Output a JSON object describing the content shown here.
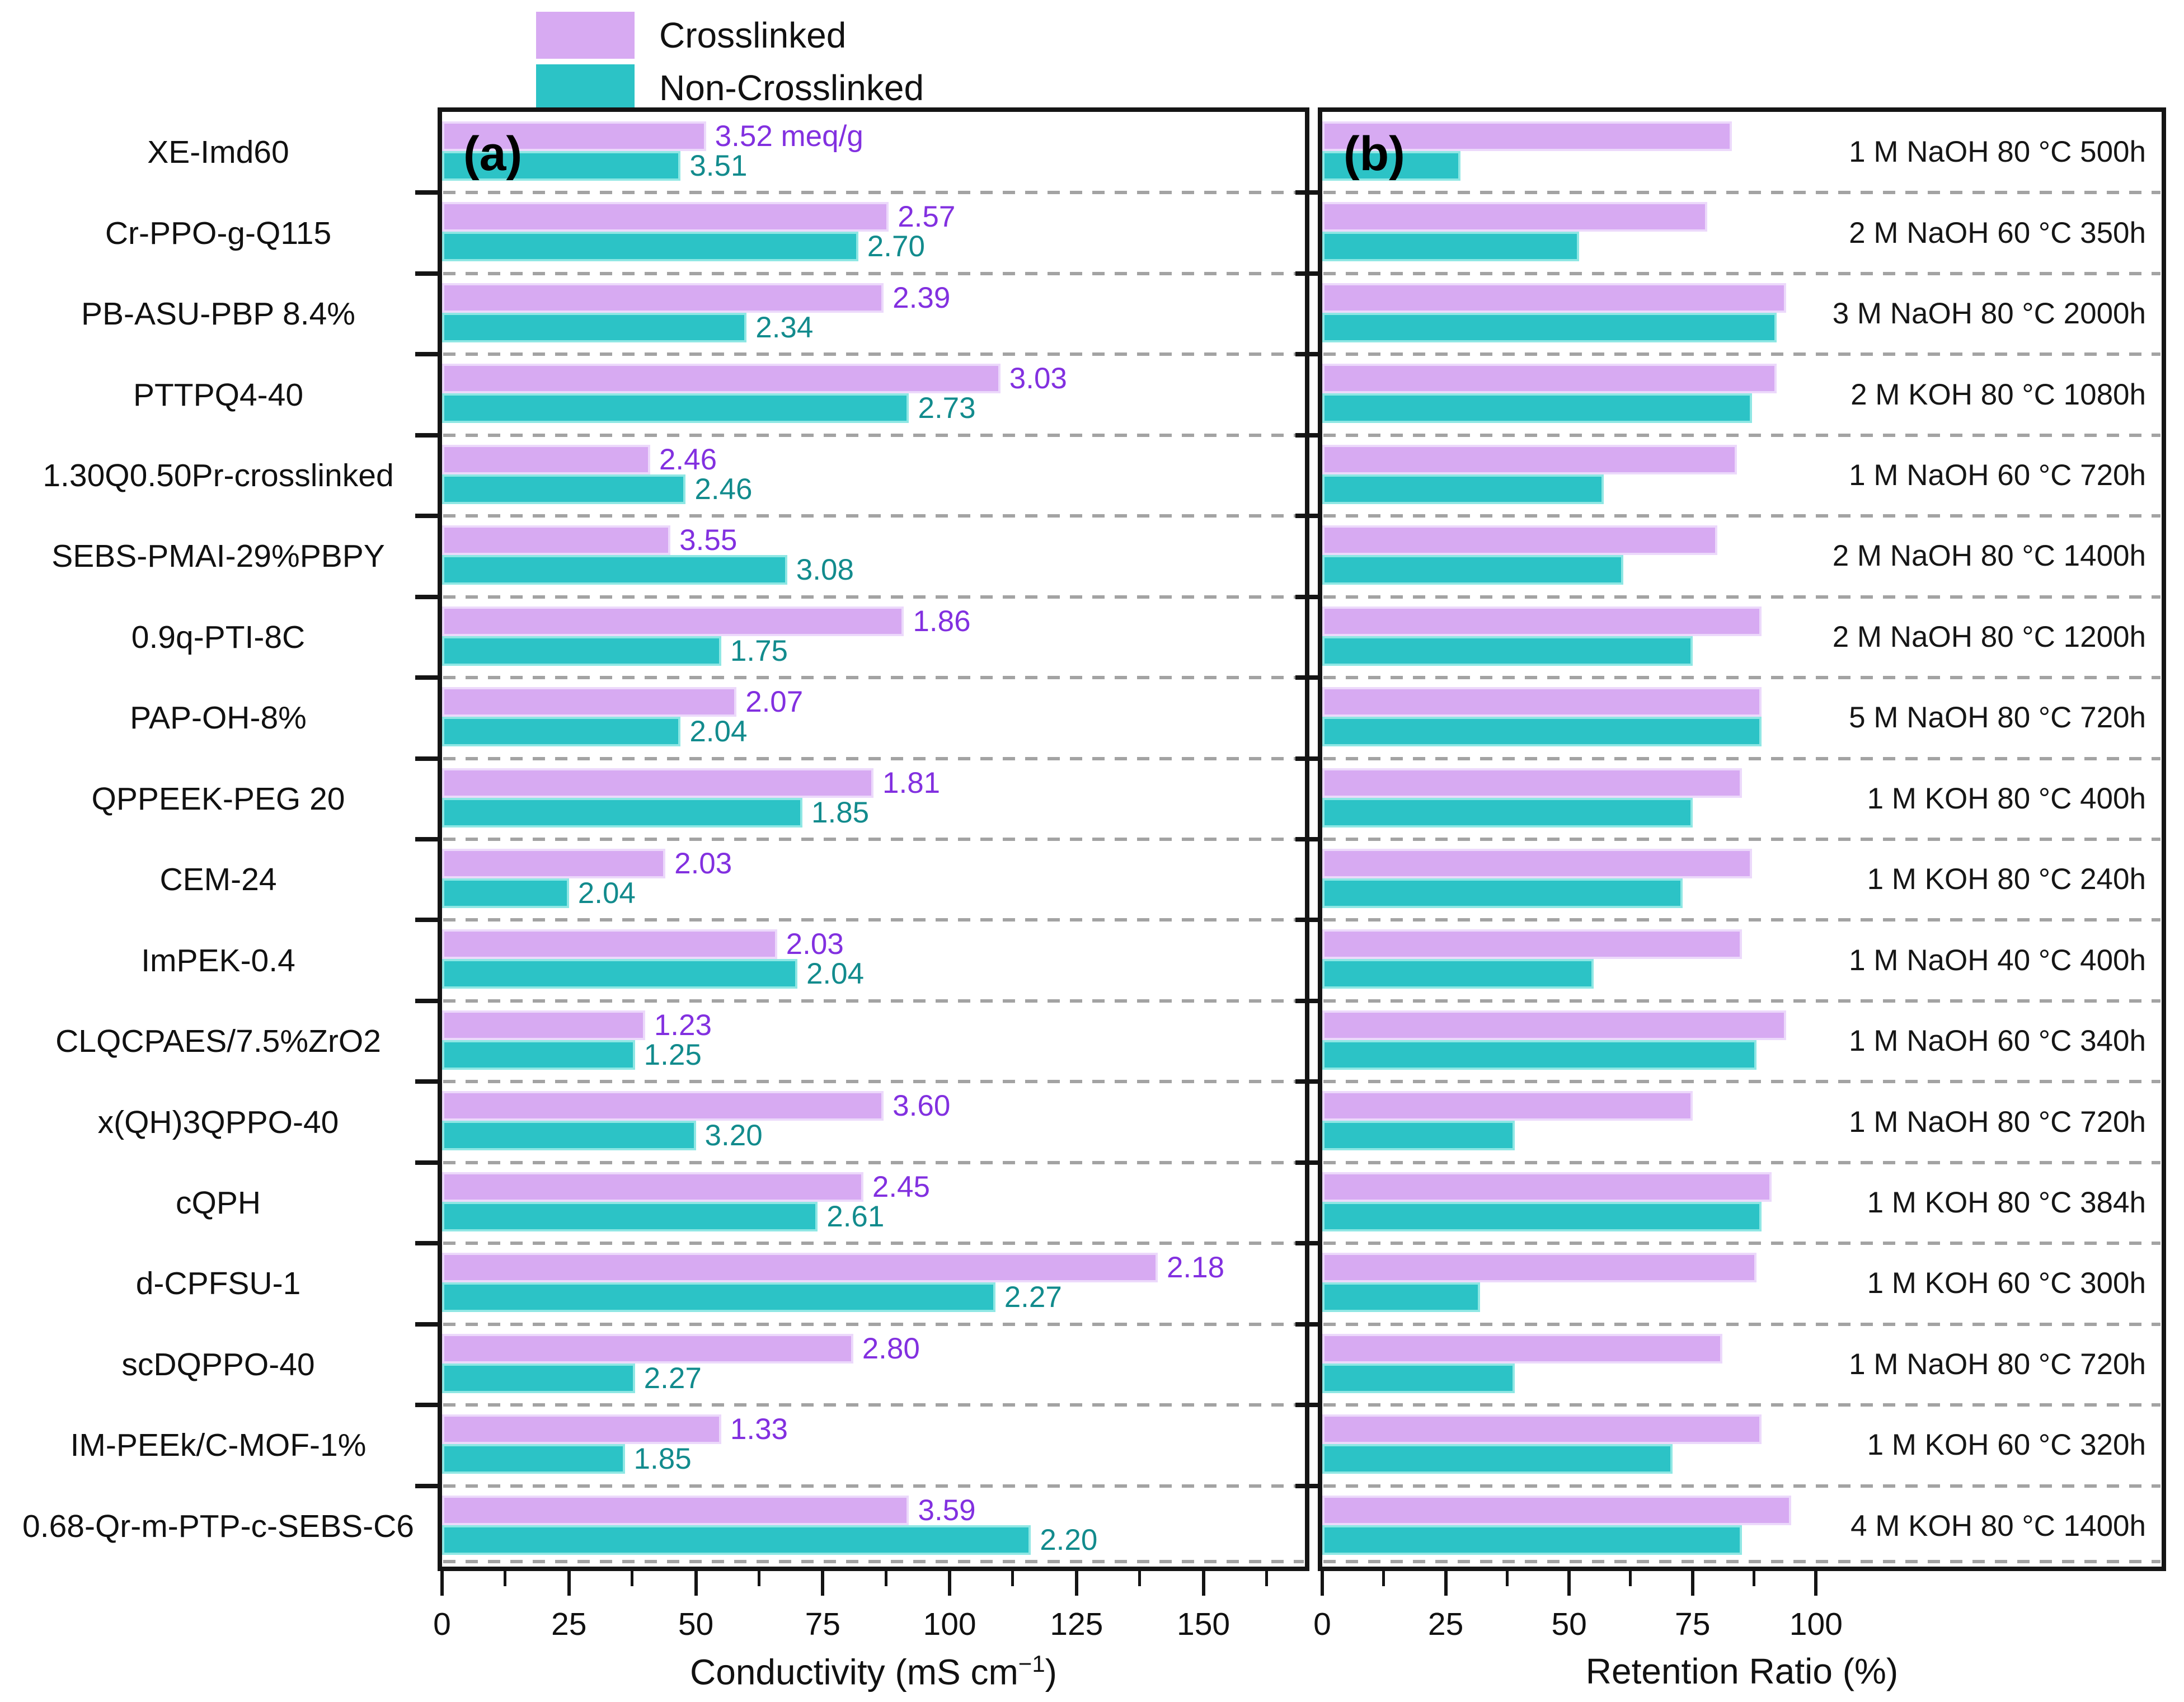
{
  "legend": {
    "items": [
      {
        "label": "Crosslinked",
        "color": "#d7aaf2"
      },
      {
        "label": "Non-Crosslinked",
        "color": "#2cc3c6"
      }
    ]
  },
  "chart_data": {
    "type": "bar",
    "orientation": "horizontal",
    "series_names": [
      "Crosslinked",
      "Non-Crosslinked"
    ],
    "colors": {
      "crosslinked": "#d7aaf2",
      "crosslinked_edge": "#ecd9fb",
      "non_crosslinked": "#2cc3c6",
      "non_crosslinked_edge": "#8fe7e4",
      "crosslinked_text": "#8230e0",
      "non_crosslinked_text": "#128b8d"
    },
    "panels": [
      {
        "id": "a",
        "tag": "(a)",
        "xlabel_prefix": "Conductivity (mS cm",
        "xlabel_sup": "−1",
        "xlabel_suffix": ")",
        "xlim": [
          0,
          170
        ],
        "xticks": [
          0,
          25,
          50,
          75,
          100,
          125,
          150
        ],
        "minor_step": 12.5,
        "minor_max": 162.5,
        "value_field": "conductivity",
        "annotation_field": "iec",
        "grid": "dashed-row-separators",
        "legend_position": "top-left-above"
      },
      {
        "id": "b",
        "tag": "(b)",
        "xlabel": "Retention Ratio (%)",
        "xlim": [
          0,
          170
        ],
        "xticks": [
          0,
          25,
          50,
          75,
          100
        ],
        "minor_step": 12.5,
        "minor_max": 87.5,
        "value_field": "retention",
        "annotation_field": "condition",
        "grid": "dashed-row-separators"
      }
    ],
    "rows": [
      {
        "material": "XE-Imd60",
        "conductivity": {
          "crosslinked": 52,
          "non_crosslinked": 47
        },
        "iec": {
          "crosslinked": "3.52 meq/g",
          "non_crosslinked": "3.51"
        },
        "retention": {
          "crosslinked": 83,
          "non_crosslinked": 28
        },
        "condition": "1 M NaOH 80 °C 500h"
      },
      {
        "material": "Cr-PPO-g-Q115",
        "conductivity": {
          "crosslinked": 88,
          "non_crosslinked": 82
        },
        "iec": {
          "crosslinked": "2.57",
          "non_crosslinked": "2.70"
        },
        "retention": {
          "crosslinked": 78,
          "non_crosslinked": 52
        },
        "condition": "2 M NaOH 60 °C 350h"
      },
      {
        "material": "PB-ASU-PBP 8.4%",
        "conductivity": {
          "crosslinked": 87,
          "non_crosslinked": 60
        },
        "iec": {
          "crosslinked": "2.39",
          "non_crosslinked": "2.34"
        },
        "retention": {
          "crosslinked": 94,
          "non_crosslinked": 92
        },
        "condition": "3 M NaOH 80 °C 2000h"
      },
      {
        "material": "PTTPQ4-40",
        "conductivity": {
          "crosslinked": 110,
          "non_crosslinked": 92
        },
        "iec": {
          "crosslinked": "3.03",
          "non_crosslinked": "2.73"
        },
        "retention": {
          "crosslinked": 92,
          "non_crosslinked": 87
        },
        "condition": "2 M KOH 80 °C 1080h"
      },
      {
        "material": "1.30Q0.50Pr-crosslinked",
        "conductivity": {
          "crosslinked": 41,
          "non_crosslinked": 48
        },
        "iec": {
          "crosslinked": "2.46",
          "non_crosslinked": "2.46"
        },
        "retention": {
          "crosslinked": 84,
          "non_crosslinked": 57
        },
        "condition": "1 M NaOH 60 °C 720h"
      },
      {
        "material": "SEBS-PMAI-29%PBPY",
        "conductivity": {
          "crosslinked": 45,
          "non_crosslinked": 68
        },
        "iec": {
          "crosslinked": "3.55",
          "non_crosslinked": "3.08"
        },
        "retention": {
          "crosslinked": 80,
          "non_crosslinked": 61
        },
        "condition": "2 M NaOH 80 °C 1400h"
      },
      {
        "material": "0.9q-PTI-8C",
        "conductivity": {
          "crosslinked": 91,
          "non_crosslinked": 55
        },
        "iec": {
          "crosslinked": "1.86",
          "non_crosslinked": "1.75"
        },
        "retention": {
          "crosslinked": 89,
          "non_crosslinked": 75
        },
        "condition": "2 M NaOH 80 °C 1200h"
      },
      {
        "material": "PAP-OH-8%",
        "conductivity": {
          "crosslinked": 58,
          "non_crosslinked": 47
        },
        "iec": {
          "crosslinked": "2.07",
          "non_crosslinked": "2.04"
        },
        "retention": {
          "crosslinked": 89,
          "non_crosslinked": 89
        },
        "condition": "5 M NaOH 80 °C 720h"
      },
      {
        "material": "QPPEEK-PEG 20",
        "conductivity": {
          "crosslinked": 85,
          "non_crosslinked": 71
        },
        "iec": {
          "crosslinked": "1.81",
          "non_crosslinked": "1.85"
        },
        "retention": {
          "crosslinked": 85,
          "non_crosslinked": 75
        },
        "condition": "1 M KOH 80 °C 400h"
      },
      {
        "material": "CEM-24",
        "conductivity": {
          "crosslinked": 44,
          "non_crosslinked": 25
        },
        "iec": {
          "crosslinked": "2.03",
          "non_crosslinked": "2.04"
        },
        "retention": {
          "crosslinked": 87,
          "non_crosslinked": 73
        },
        "condition": "1 M KOH 80 °C 240h"
      },
      {
        "material": "ImPEK-0.4",
        "conductivity": {
          "crosslinked": 66,
          "non_crosslinked": 70
        },
        "iec": {
          "crosslinked": "2.03",
          "non_crosslinked": "2.04"
        },
        "retention": {
          "crosslinked": 85,
          "non_crosslinked": 55
        },
        "condition": "1 M NaOH 40 °C 400h"
      },
      {
        "material": "CLQCPAES/7.5%ZrO2",
        "conductivity": {
          "crosslinked": 40,
          "non_crosslinked": 38
        },
        "iec": {
          "crosslinked": "1.23",
          "non_crosslinked": "1.25"
        },
        "retention": {
          "crosslinked": 94,
          "non_crosslinked": 88
        },
        "condition": "1 M NaOH 60 °C 340h"
      },
      {
        "material": "x(QH)3QPPO-40",
        "conductivity": {
          "crosslinked": 87,
          "non_crosslinked": 50
        },
        "iec": {
          "crosslinked": "3.60",
          "non_crosslinked": "3.20"
        },
        "retention": {
          "crosslinked": 75,
          "non_crosslinked": 39
        },
        "condition": "1 M NaOH 80 °C 720h"
      },
      {
        "material": "cQPH",
        "conductivity": {
          "crosslinked": 83,
          "non_crosslinked": 74
        },
        "iec": {
          "crosslinked": "2.45",
          "non_crosslinked": "2.61"
        },
        "retention": {
          "crosslinked": 91,
          "non_crosslinked": 89
        },
        "condition": "1 M KOH 80 °C 384h"
      },
      {
        "material": "d-CPFSU-1",
        "conductivity": {
          "crosslinked": 141,
          "non_crosslinked": 109
        },
        "iec": {
          "crosslinked": "2.18",
          "non_crosslinked": "2.27"
        },
        "retention": {
          "crosslinked": 88,
          "non_crosslinked": 32
        },
        "condition": "1 M KOH 60 °C 300h"
      },
      {
        "material": "scDQPPO-40",
        "conductivity": {
          "crosslinked": 81,
          "non_crosslinked": 38
        },
        "iec": {
          "crosslinked": "2.80",
          "non_crosslinked": "2.27"
        },
        "retention": {
          "crosslinked": 81,
          "non_crosslinked": 39
        },
        "condition": "1 M NaOH 80 °C 720h"
      },
      {
        "material": "IM-PEEk/C-MOF-1%",
        "conductivity": {
          "crosslinked": 55,
          "non_crosslinked": 36
        },
        "iec": {
          "crosslinked": "1.33",
          "non_crosslinked": "1.85"
        },
        "retention": {
          "crosslinked": 89,
          "non_crosslinked": 71
        },
        "condition": "1 M KOH 60 °C 320h"
      },
      {
        "material": "0.68-Qr-m-PTP-c-SEBS-C6",
        "conductivity": {
          "crosslinked": 92,
          "non_crosslinked": 116
        },
        "iec": {
          "crosslinked": "3.59",
          "non_crosslinked": "2.20"
        },
        "retention": {
          "crosslinked": 95,
          "non_crosslinked": 85
        },
        "condition": "4 M KOH 80 °C 1400h"
      }
    ]
  }
}
